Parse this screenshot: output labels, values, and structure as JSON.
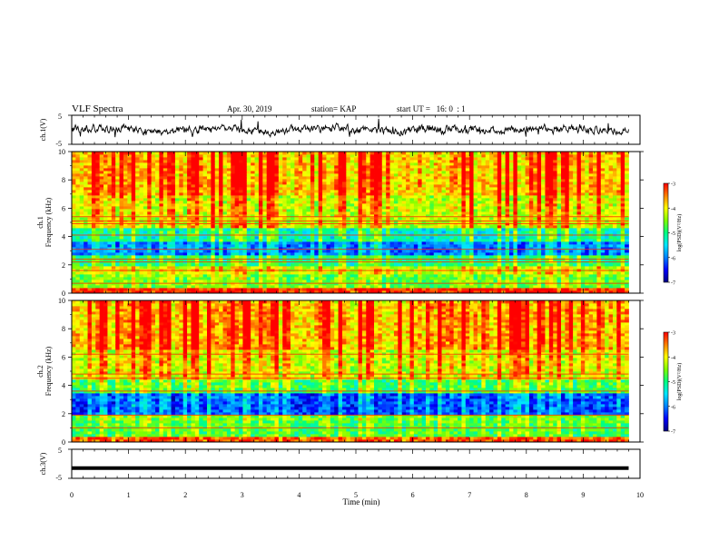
{
  "header": {
    "title": "VLF Spectra",
    "date": "Apr. 30, 2019",
    "station": "station= KAP",
    "start_ut": "start UT =   16: 0  : 1"
  },
  "colorbar_labels": {
    "ticks": [
      "-3",
      "-4",
      "-5",
      "-6",
      "-7"
    ],
    "label": "log(PSD)(V²/Hz)"
  },
  "colormap": [
    "#00007f",
    "#0000ff",
    "#0080ff",
    "#00e5ff",
    "#00ff80",
    "#7fff00",
    "#ffff00",
    "#ff8000",
    "#ff0000"
  ],
  "chart_data": [
    {
      "id": "ch1-waveform",
      "type": "line",
      "ylabel": "ch.1(V)",
      "ylim": [
        -5,
        5
      ],
      "yticks": [
        "5",
        "-5"
      ],
      "xlim": [
        0,
        10
      ],
      "trace_color": "#000000",
      "trace": "noisy waveform around 0 V, amplitude ~1-2 V, spanning 0 to 9.8 min"
    },
    {
      "id": "ch1-spectrogram",
      "type": "heatmap",
      "ylabel_lines": [
        "ch.1",
        "Frequency (kHz)"
      ],
      "ylim": [
        0,
        10
      ],
      "yticks": [
        "0",
        "2",
        "4",
        "6",
        "8",
        "10"
      ],
      "xlim": [
        0,
        9.8
      ],
      "zlim": [
        -7,
        -3
      ],
      "colorbar_ticks": [
        "-3",
        "-4",
        "-5",
        "-6",
        "-7"
      ],
      "colorbar_label": "log(PSD)(V²/Hz)",
      "bands": [
        {
          "from": 0,
          "to": 0.4,
          "level": 0.95
        },
        {
          "from": 0.4,
          "to": 1.4,
          "level": 0.6
        },
        {
          "from": 1.4,
          "to": 2.0,
          "level": 0.7
        },
        {
          "from": 2.0,
          "to": 2.6,
          "level": 0.5
        },
        {
          "from": 2.6,
          "to": 3.6,
          "level": 0.25
        },
        {
          "from": 3.6,
          "to": 4.7,
          "level": 0.45
        },
        {
          "from": 4.7,
          "to": 5.3,
          "level": 0.7
        },
        {
          "from": 5.3,
          "to": 7.0,
          "level": 0.72
        },
        {
          "from": 7.0,
          "to": 10.0,
          "level": 0.82
        }
      ],
      "lines_khz": [
        0.7,
        1.6,
        2.2,
        2.4,
        3.1,
        4.1,
        4.9,
        5.1,
        5.4
      ]
    },
    {
      "id": "ch2-spectrogram",
      "type": "heatmap",
      "ylabel_lines": [
        "ch.2",
        "Frequency (kHz)"
      ],
      "ylim": [
        0,
        10
      ],
      "yticks": [
        "0",
        "2",
        "4",
        "6",
        "8",
        "10"
      ],
      "xlim": [
        0,
        9.8
      ],
      "zlim": [
        -7,
        -3
      ],
      "colorbar_ticks": [
        "-3",
        "-4",
        "-5",
        "-6",
        "-7"
      ],
      "colorbar_label": "log(PSD)(V²/Hz)",
      "bands": [
        {
          "from": 0,
          "to": 0.4,
          "level": 0.9
        },
        {
          "from": 0.4,
          "to": 1.5,
          "level": 0.55
        },
        {
          "from": 1.5,
          "to": 2.0,
          "level": 0.6
        },
        {
          "from": 2.0,
          "to": 3.4,
          "level": 0.2
        },
        {
          "from": 3.4,
          "to": 4.4,
          "level": 0.55
        },
        {
          "from": 4.4,
          "to": 6.5,
          "level": 0.72
        },
        {
          "from": 6.5,
          "to": 10.0,
          "level": 0.83
        }
      ],
      "lines_khz": [
        1.0,
        1.9,
        3.6,
        4.5,
        4.8,
        6.2
      ]
    },
    {
      "id": "ch3-waveform",
      "type": "line",
      "ylabel": "ch.3(V)",
      "ylim": [
        -5,
        5
      ],
      "yticks": [
        "5",
        "-5"
      ],
      "xlim": [
        0,
        10
      ],
      "trace_color": "#000000",
      "constant_value": -1.5,
      "trace": "flat constant line near -1.5 V from 0 to 9.8 min"
    }
  ],
  "x_axis": {
    "label": "Time (min)",
    "ticks": [
      "0",
      "1",
      "2",
      "3",
      "4",
      "5",
      "6",
      "7",
      "8",
      "9",
      "10"
    ],
    "range": [
      0,
      10
    ]
  }
}
